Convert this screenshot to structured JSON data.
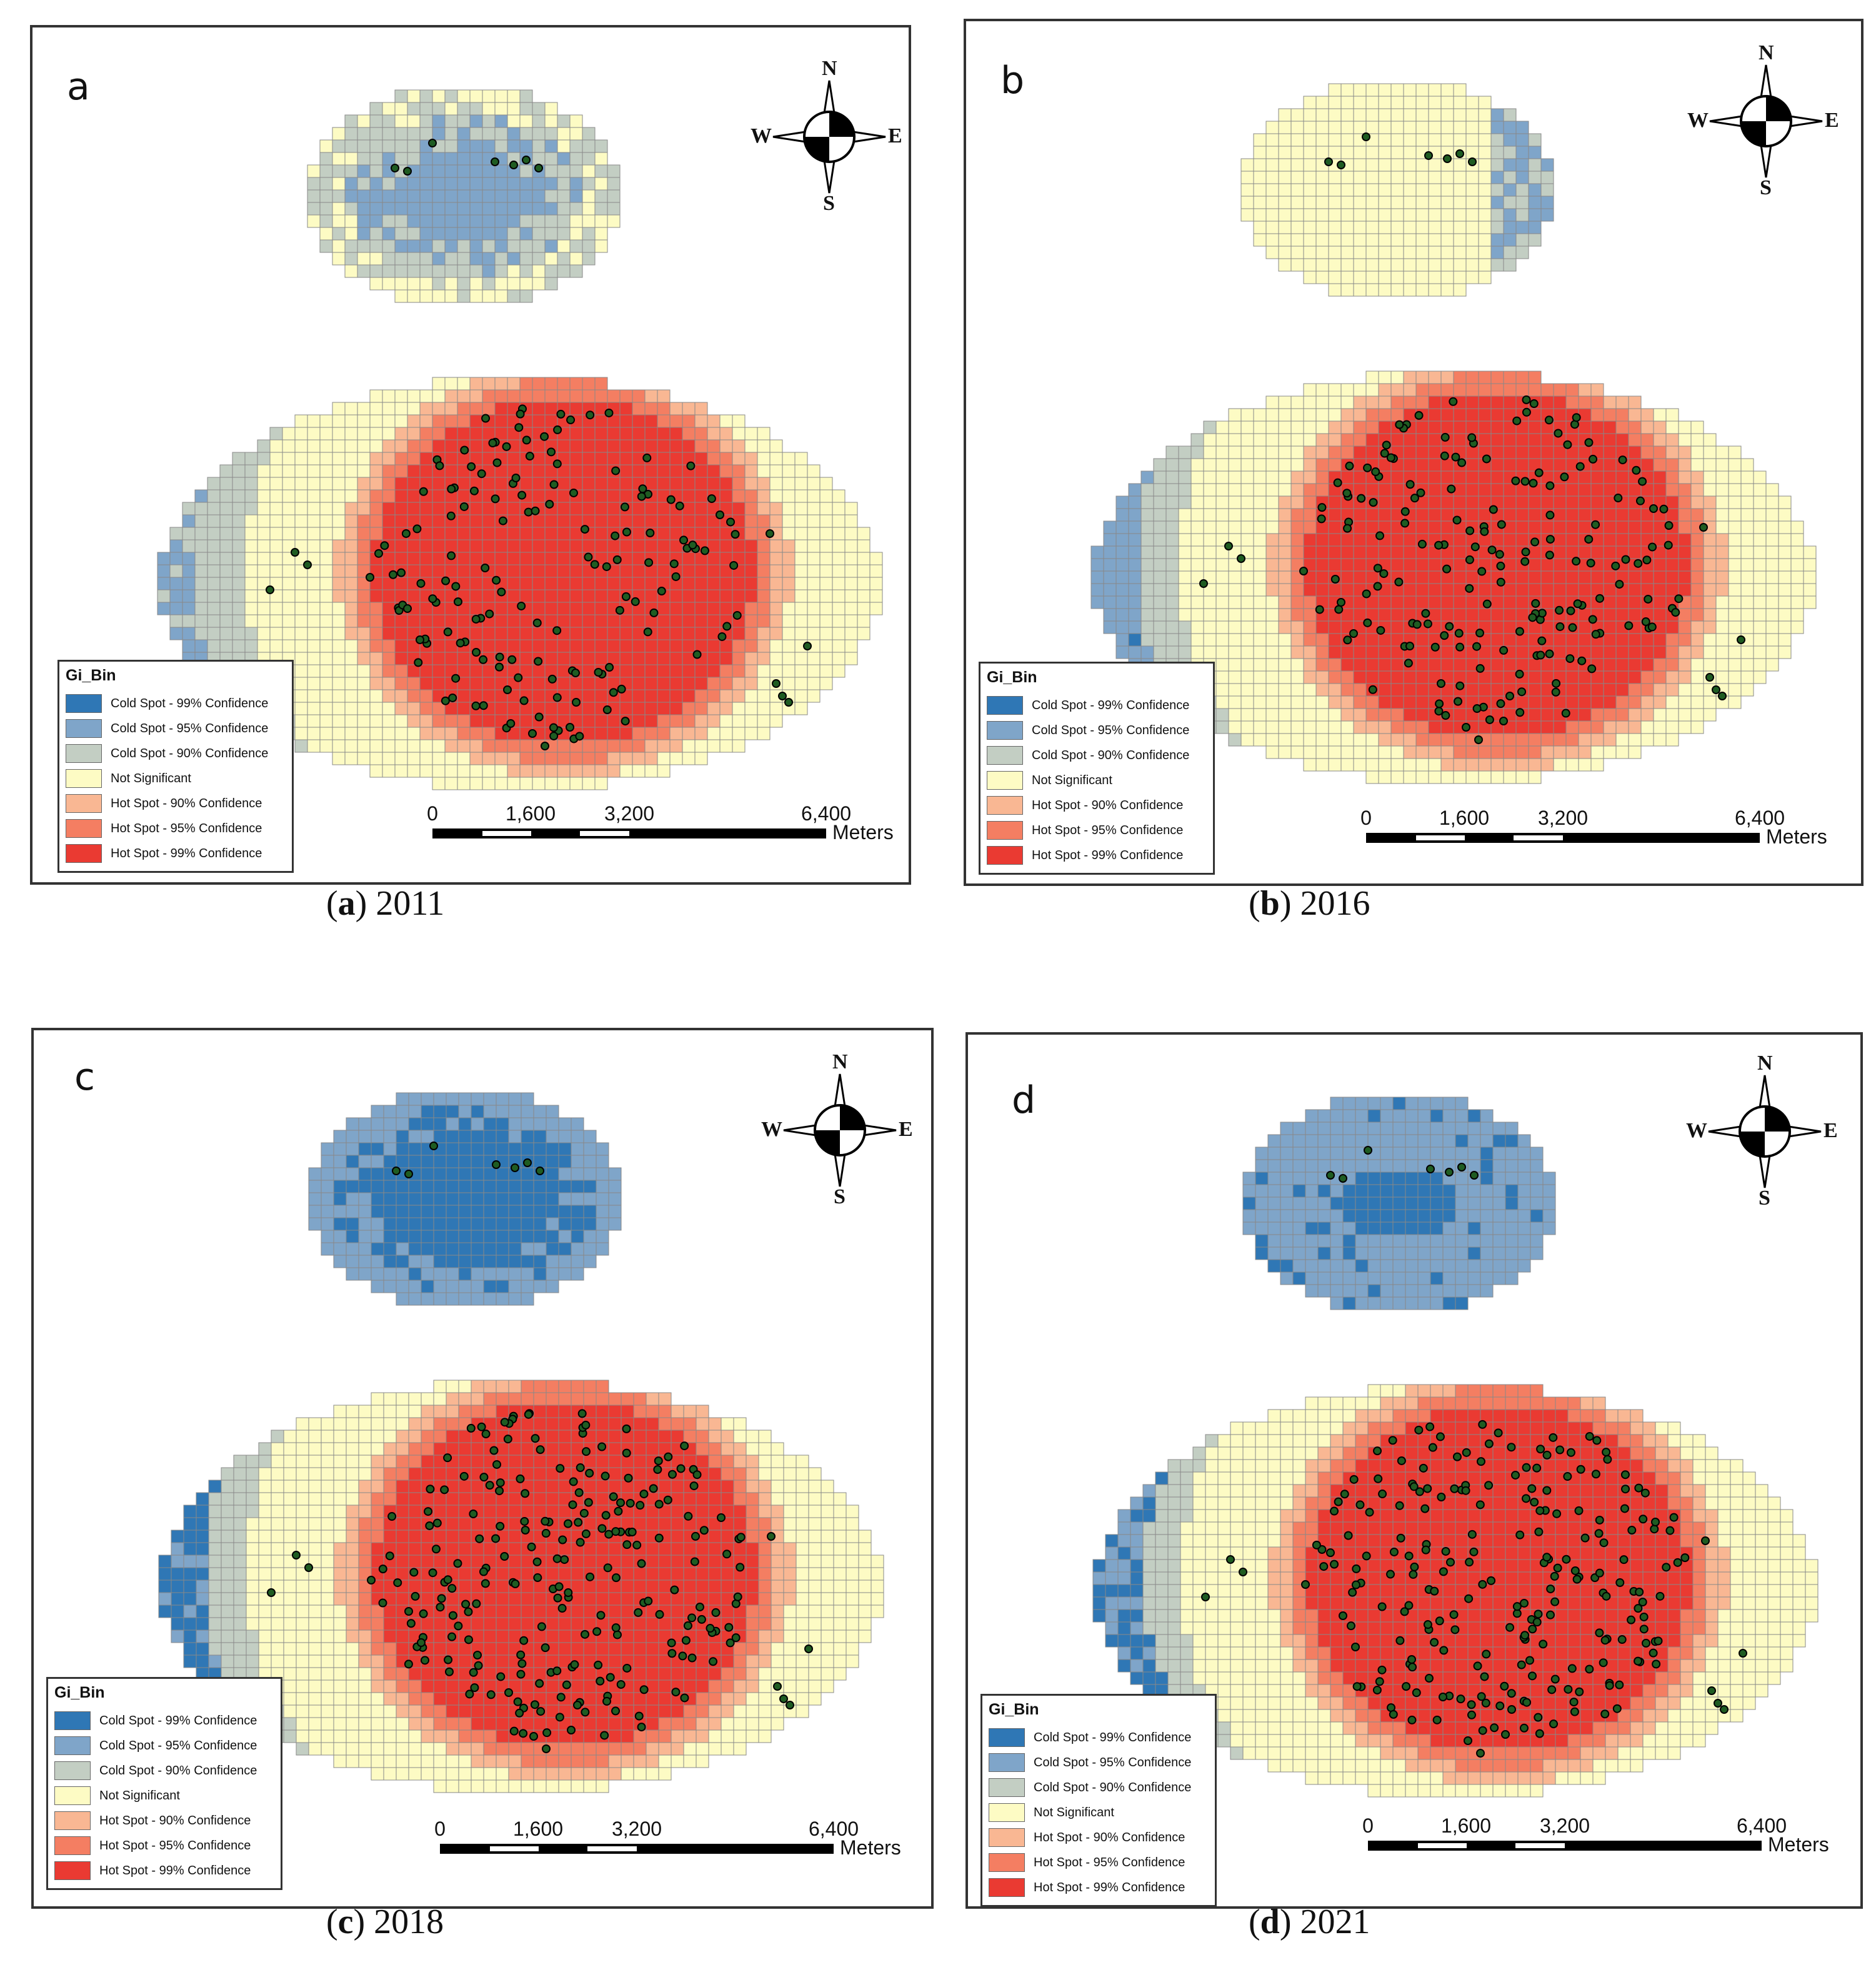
{
  "figure": {
    "panels": [
      {
        "letter": "a",
        "caption_letter": "a",
        "caption_year": "2011",
        "variant": "a"
      },
      {
        "letter": "b",
        "caption_letter": "b",
        "caption_year": "2016",
        "variant": "b"
      },
      {
        "letter": "c",
        "caption_letter": "c",
        "caption_year": "2018",
        "variant": "c"
      },
      {
        "letter": "d",
        "caption_letter": "d",
        "caption_year": "2021",
        "variant": "d"
      }
    ],
    "caption_open": "(",
    "caption_close": ")"
  },
  "compass": {
    "n": "N",
    "s": "S",
    "e": "E",
    "w": "W"
  },
  "legend": {
    "title": "Gi_Bin",
    "items": [
      {
        "label": "Cold Spot - 99% Confidence",
        "color": "#2f77b5"
      },
      {
        "label": "Cold Spot - 95% Confidence",
        "color": "#7fa5c9"
      },
      {
        "label": "Cold Spot - 90% Confidence",
        "color": "#c3cec3"
      },
      {
        "label": "Not Significant",
        "color": "#fdfbc4"
      },
      {
        "label": "Hot Spot - 90% Confidence",
        "color": "#f9b793"
      },
      {
        "label": "Hot Spot - 95% Confidence",
        "color": "#f47e62"
      },
      {
        "label": "Hot Spot - 99% Confidence",
        "color": "#ea3a32"
      }
    ]
  },
  "scalebar": {
    "ticks": [
      "0",
      "1,600",
      "3,200",
      "6,400"
    ],
    "unit": "Meters"
  },
  "colors": {
    "grid_line": "#888888",
    "point_fill": "#1f5c22",
    "point_stroke": "#000000"
  }
}
